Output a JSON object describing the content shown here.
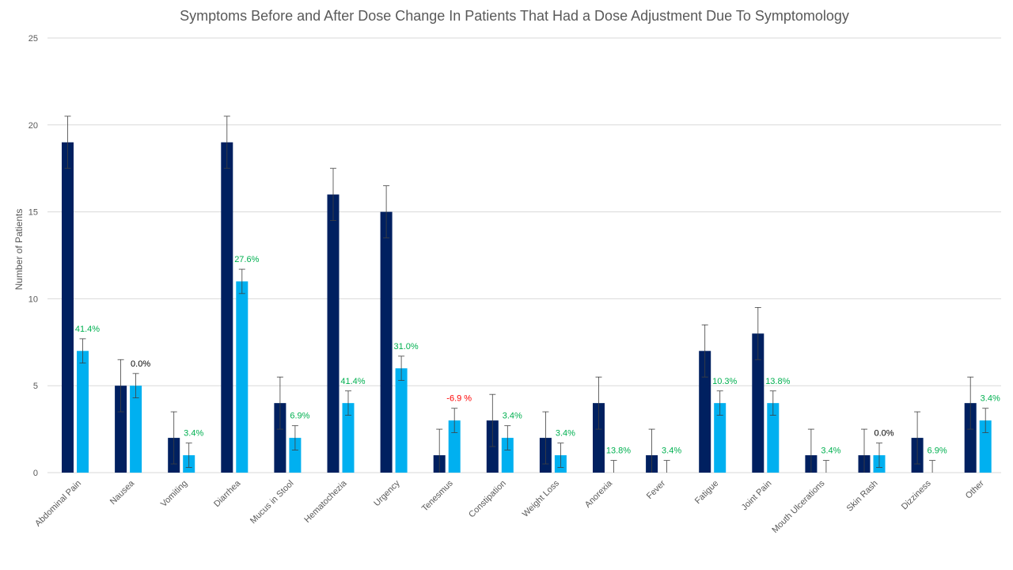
{
  "chart_data": {
    "type": "bar",
    "title": "Symptoms Before and After Dose Change In Patients That Had a Dose Adjustment Due To Symptomology",
    "xlabel": "",
    "ylabel": "Number of Patients",
    "ylim": [
      0,
      25
    ],
    "yticks": [
      "0",
      "5",
      "10",
      "15",
      "20",
      "25"
    ],
    "grid": true,
    "categories": [
      "Abdominal Pain",
      "Nausea",
      "Vomiting",
      "Diarrhea",
      "Mucus in Stool",
      "Hematochezia",
      "Urgency",
      "Tenesmus",
      "Constipation",
      "Weight Loss",
      "Anorexia",
      "Fever",
      "Fatigue",
      "Joint Pain",
      "Mouth Ulcerations",
      "Skin Rash",
      "Dizziness",
      "Other"
    ],
    "series": [
      {
        "color": "#002060",
        "values": [
          19,
          5,
          2,
          19,
          4,
          16,
          15,
          1,
          3,
          2,
          4,
          1,
          7,
          8,
          1,
          1,
          2,
          4
        ],
        "error": 1.5
      },
      {
        "color": "#00B0F0",
        "values": [
          7,
          5,
          1,
          11,
          2,
          4,
          6,
          3,
          2,
          1,
          0,
          0,
          4,
          4,
          0,
          1,
          0,
          3
        ],
        "error": 0.7
      }
    ],
    "annotations": [
      "41.4%",
      "0.0%",
      "3.4%",
      "27.6%",
      "6.9%",
      "41.4%",
      "31.0%",
      "-6.9 %",
      "3.4%",
      "3.4%",
      "13.8%",
      "3.4%",
      "10.3%",
      "13.8%",
      "3.4%",
      "0.0%",
      "6.9%",
      "3.4%"
    ],
    "annotation_colors": [
      "#00B050",
      "#000000",
      "#00B050",
      "#00B050",
      "#00B050",
      "#00B050",
      "#00B050",
      "#FF0000",
      "#00B050",
      "#00B050",
      "#00B050",
      "#00B050",
      "#00B050",
      "#00B050",
      "#00B050",
      "#000000",
      "#00B050",
      "#00B050"
    ],
    "colors": {
      "grid": "#d9d9d9",
      "axis_text": "#595959",
      "error_bar": "#404040"
    }
  }
}
